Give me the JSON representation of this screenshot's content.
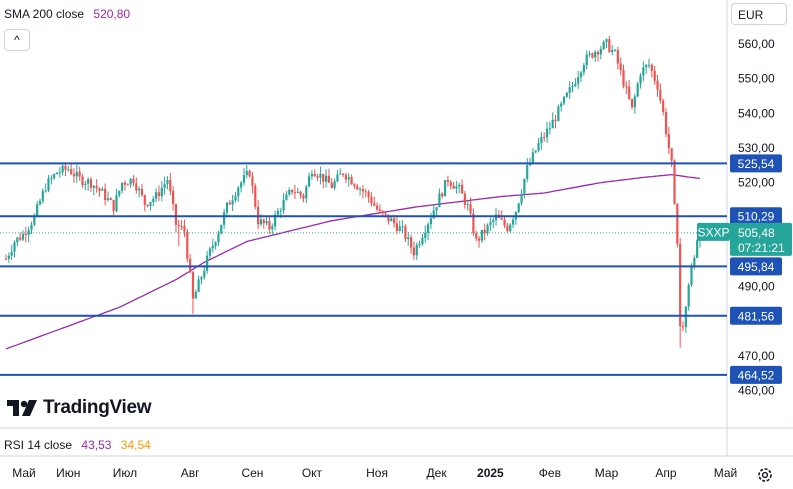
{
  "header": {
    "indicator_label": "SMA 200 close",
    "indicator_value": "520,80",
    "currency": "EUR",
    "collapse_glyph": "^"
  },
  "rsi": {
    "label": "RSI 14 close",
    "value1": "43,53",
    "value2": "34,54"
  },
  "logo": {
    "text": "TradingView",
    "icon": "tradingview-logo-icon"
  },
  "ticker": {
    "symbol": "SXXP",
    "price": "505,48",
    "countdown": "07:21:21"
  },
  "colors": {
    "up": "#26a69a",
    "down": "#ef5350",
    "sma": "#9c27b0",
    "level": "#1e52b5",
    "price": "#26a69a"
  },
  "levels": [
    {
      "value": 525.54,
      "label": "525,54"
    },
    {
      "value": 510.29,
      "label": "510,29"
    },
    {
      "value": 495.84,
      "label": "495,84"
    },
    {
      "value": 481.56,
      "label": "481,56"
    },
    {
      "value": 464.52,
      "label": "464,52"
    }
  ],
  "chart_data": {
    "type": "candlestick",
    "ylim": [
      460,
      566
    ],
    "y_ticks": [
      {
        "value": 560,
        "label": "560,00"
      },
      {
        "value": 550,
        "label": "550,00"
      },
      {
        "value": 540,
        "label": "540,00"
      },
      {
        "value": 530,
        "label": "530,00"
      },
      {
        "value": 520,
        "label": "520,00"
      },
      {
        "value": 490,
        "label": "490,00"
      },
      {
        "value": 470,
        "label": "470,00"
      },
      {
        "value": 460,
        "label": "460,00"
      }
    ],
    "x_ticks": [
      {
        "day": 0,
        "label": "Май"
      },
      {
        "day": 22,
        "label": "Июн"
      },
      {
        "day": 42,
        "label": "Июл"
      },
      {
        "day": 65,
        "label": "Авг"
      },
      {
        "day": 87,
        "label": "Сен"
      },
      {
        "day": 108,
        "label": "Окт"
      },
      {
        "day": 131,
        "label": "Ноя"
      },
      {
        "day": 152,
        "label": "Дек"
      },
      {
        "day": 171,
        "label": "2025"
      },
      {
        "day": 192,
        "label": "Фев"
      },
      {
        "day": 212,
        "label": "Мар"
      },
      {
        "day": 233,
        "label": "Апр"
      },
      {
        "day": 254,
        "label": "Май"
      }
    ],
    "price_anchors": [
      [
        0,
        498
      ],
      [
        3,
        503
      ],
      [
        6,
        505
      ],
      [
        10,
        510
      ],
      [
        14,
        519
      ],
      [
        18,
        523
      ],
      [
        22,
        524
      ],
      [
        26,
        521
      ],
      [
        30,
        520
      ],
      [
        34,
        517
      ],
      [
        38,
        513
      ],
      [
        41,
        520
      ],
      [
        45,
        521
      ],
      [
        49,
        514
      ],
      [
        53,
        516
      ],
      [
        57,
        521
      ],
      [
        60,
        508
      ],
      [
        63,
        506
      ],
      [
        66,
        486
      ],
      [
        69,
        493
      ],
      [
        72,
        500
      ],
      [
        75,
        506
      ],
      [
        78,
        513
      ],
      [
        82,
        519
      ],
      [
        86,
        523
      ],
      [
        89,
        509
      ],
      [
        93,
        507
      ],
      [
        97,
        513
      ],
      [
        101,
        518
      ],
      [
        105,
        516
      ],
      [
        108,
        524
      ],
      [
        111,
        522
      ],
      [
        115,
        519
      ],
      [
        119,
        523
      ],
      [
        123,
        520
      ],
      [
        128,
        516
      ],
      [
        132,
        511
      ],
      [
        136,
        509
      ],
      [
        140,
        506
      ],
      [
        144,
        500
      ],
      [
        148,
        507
      ],
      [
        152,
        514
      ],
      [
        156,
        521
      ],
      [
        160,
        518
      ],
      [
        163,
        513
      ],
      [
        166,
        503
      ],
      [
        169,
        506
      ],
      [
        173,
        510
      ],
      [
        177,
        507
      ],
      [
        180,
        512
      ],
      [
        184,
        524
      ],
      [
        188,
        531
      ],
      [
        192,
        536
      ],
      [
        196,
        542
      ],
      [
        200,
        548
      ],
      [
        204,
        555
      ],
      [
        208,
        558
      ],
      [
        212,
        560
      ],
      [
        215,
        557
      ],
      [
        218,
        549
      ],
      [
        221,
        541
      ],
      [
        224,
        552
      ],
      [
        227,
        554
      ],
      [
        230,
        548
      ],
      [
        232,
        540
      ],
      [
        235,
        525
      ],
      [
        237,
        500
      ],
      [
        238,
        475
      ],
      [
        239,
        480
      ],
      [
        240,
        486
      ],
      [
        242,
        495
      ],
      [
        244,
        503
      ],
      [
        245,
        505.48
      ]
    ],
    "sma_anchors": [
      [
        0,
        472
      ],
      [
        20,
        478
      ],
      [
        40,
        484
      ],
      [
        60,
        492
      ],
      [
        70,
        497
      ],
      [
        85,
        503
      ],
      [
        100,
        506
      ],
      [
        115,
        509
      ],
      [
        130,
        511
      ],
      [
        145,
        513
      ],
      [
        160,
        514.5
      ],
      [
        175,
        516
      ],
      [
        190,
        517
      ],
      [
        200,
        518.5
      ],
      [
        210,
        520
      ],
      [
        225,
        521.5
      ],
      [
        235,
        522.3
      ],
      [
        241,
        521.6
      ],
      [
        245,
        521.2
      ]
    ],
    "last_price": 505.48
  }
}
